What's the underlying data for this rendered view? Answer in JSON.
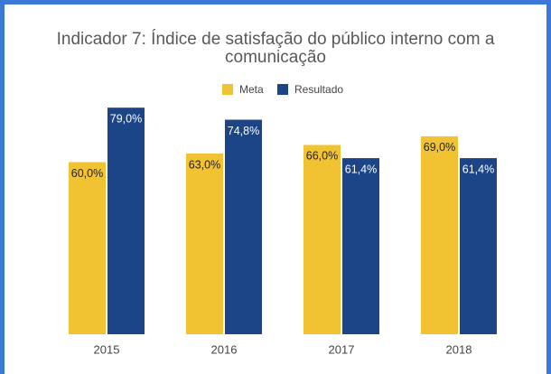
{
  "chart_data": {
    "type": "bar",
    "title": "Indicador 7: Índice de satisfação do público interno com a comunicação",
    "categories": [
      "2015",
      "2016",
      "2017",
      "2018"
    ],
    "series": [
      {
        "name": "Meta",
        "color": "#f1c232",
        "values": [
          60.0,
          63.0,
          66.0,
          69.0
        ],
        "value_labels": [
          "60,0%",
          "63,0%",
          "66,0%",
          "69,0%"
        ]
      },
      {
        "name": "Resultado",
        "color": "#1c4587",
        "values": [
          79.0,
          74.8,
          61.4,
          61.4
        ],
        "value_labels": [
          "79,0%",
          "74,8%",
          "61,4%",
          "61,4%"
        ]
      }
    ],
    "ylim": [
      0,
      80
    ],
    "legend": "top"
  }
}
